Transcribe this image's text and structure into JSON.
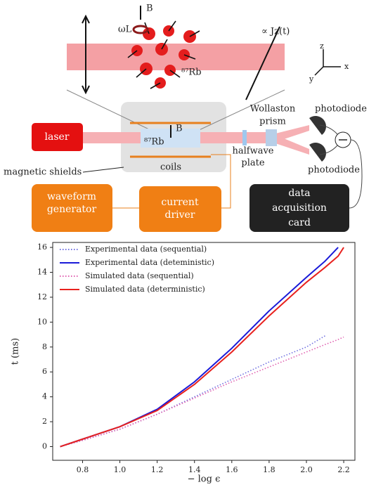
{
  "diagram": {
    "inset": {
      "field_label": "B",
      "larmor_label": "ωL",
      "proportional_label": "∝ Jz(t)",
      "atom_label": "⁸⁷Rb",
      "axis_labels": [
        "z",
        "x",
        "y"
      ]
    },
    "setup": {
      "laser": "laser",
      "field_label": "B",
      "cell_label": "⁸⁷Rb",
      "coils": "coils",
      "shields": "magnetic shields",
      "halfwave_plate": [
        "halfwave",
        "plate"
      ],
      "wollaston_prism": [
        "Wollaston",
        "prism"
      ],
      "photodiodes": [
        "photodiode",
        "photodiode"
      ],
      "waveform_generator": [
        "waveform",
        "generator"
      ],
      "current_driver": [
        "current",
        "driver"
      ],
      "daq": [
        "data",
        "acquisition",
        "card"
      ]
    }
  },
  "chart_data": {
    "type": "line",
    "xlabel": "− log ϵ",
    "ylabel": "t (ms)",
    "x": [
      0.68,
      0.8,
      1.0,
      1.2,
      1.4,
      1.6,
      1.8,
      2.0,
      2.1,
      2.17,
      2.2
    ],
    "series": [
      {
        "name": "Experimental data (sequential)",
        "color": "#7070e0",
        "linestyle": "dotted",
        "values": [
          0,
          0.5,
          1.4,
          2.6,
          4.0,
          5.4,
          6.8,
          8.0,
          8.9,
          null,
          null
        ]
      },
      {
        "name": "Experimental data (deteministic)",
        "color": "#1a1ad8",
        "linestyle": "solid",
        "values": [
          0,
          0.6,
          1.6,
          3.0,
          5.2,
          7.9,
          10.9,
          13.6,
          14.9,
          16,
          null
        ]
      },
      {
        "name": "Simulated data (sequential)",
        "color": "#e060b0",
        "linestyle": "dotted",
        "values": [
          0,
          0.5,
          1.4,
          2.6,
          3.9,
          5.2,
          6.4,
          7.6,
          8.2,
          8.6,
          8.8
        ]
      },
      {
        "name": "Simulated data (deterministic)",
        "color": "#e8211e",
        "linestyle": "solid",
        "values": [
          0,
          0.6,
          1.6,
          2.9,
          5.0,
          7.6,
          10.5,
          13.2,
          14.4,
          15.3,
          16
        ]
      }
    ],
    "xlim": [
      0.64,
      2.26
    ],
    "ylim": [
      -1.1,
      16.4
    ],
    "xticks": [
      0.8,
      {
        "value": 1.0,
        "label": "1.0"
      },
      1.2,
      1.4,
      1.6,
      1.8,
      {
        "value": 2.0,
        "label": "2.0"
      },
      2.2
    ],
    "yticks": [
      0,
      2,
      4,
      6,
      8,
      10,
      12,
      14,
      16
    ],
    "legend": "upper left"
  }
}
